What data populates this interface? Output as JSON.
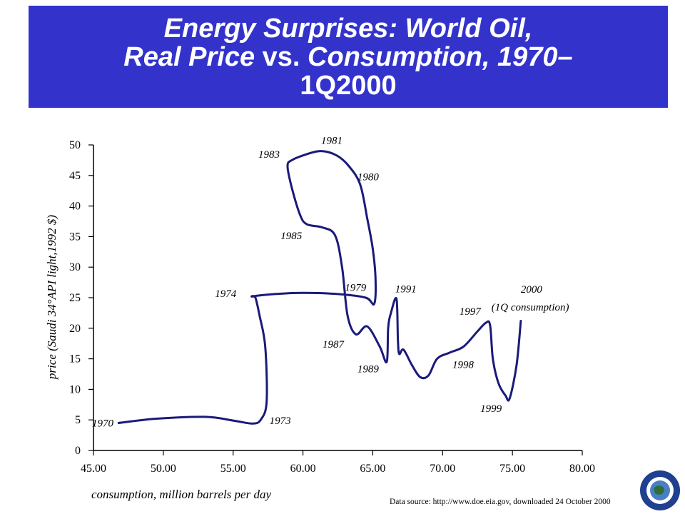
{
  "title": {
    "line1": "Energy Surprises: World Oil,",
    "line2_a": "Real Price",
    "line2_b": " vs. ",
    "line2_c": "Consumption, 1970–",
    "line3": "1Q2000"
  },
  "chart_data": {
    "type": "line",
    "xlabel": "consumption, million barrels per day",
    "ylabel": "price (Saudi 34°API light,1992 $)",
    "xlim": [
      45,
      80
    ],
    "ylim": [
      0,
      50
    ],
    "x_ticks": [
      "45.00",
      "50.00",
      "55.00",
      "60.00",
      "65.00",
      "70.00",
      "75.00",
      "80.00"
    ],
    "y_ticks": [
      "0",
      "5",
      "10",
      "15",
      "20",
      "25",
      "30",
      "35",
      "40",
      "45",
      "50"
    ],
    "series": [
      {
        "x": [
          46.8,
          49.5,
          53.0,
          55.0,
          56.4,
          57.0,
          57.4,
          57.3,
          56.9,
          56.6,
          56.4,
          58.0,
          60.0,
          62.5,
          64.5,
          65.1,
          65.2,
          65.0,
          64.6,
          64.1,
          63.3,
          62.4,
          61.3,
          60.3,
          59.2,
          58.9,
          59.2,
          59.8,
          60.3,
          61.4,
          62.3,
          62.8,
          63.2,
          63.8,
          64.6,
          65.5,
          66.0,
          66.1,
          66.3,
          66.7,
          66.8,
          66.9,
          67.2,
          67.8,
          68.4,
          69.0,
          69.6,
          70.5,
          71.5,
          72.5,
          73.1,
          73.4,
          73.6,
          74.0,
          74.5,
          74.8,
          75.3,
          75.6
        ],
        "y": [
          4.5,
          5.2,
          5.5,
          4.9,
          4.4,
          5.1,
          8.0,
          17.0,
          22.0,
          25.0,
          25.2,
          25.6,
          25.8,
          25.6,
          25.0,
          24.0,
          28.0,
          33.0,
          38.0,
          43.5,
          46.5,
          48.3,
          49.0,
          48.5,
          47.5,
          46.5,
          43.0,
          38.5,
          37.0,
          36.5,
          35.2,
          30.0,
          22.0,
          19.0,
          20.3,
          17.0,
          14.5,
          20.0,
          22.5,
          24.8,
          18.0,
          15.8,
          16.5,
          14.0,
          12.0,
          12.3,
          15.0,
          16.0,
          17.0,
          19.5,
          20.9,
          20.5,
          15.0,
          11.0,
          9.0,
          8.5,
          14.0,
          21.2
        ]
      }
    ],
    "annotations": [
      {
        "text": "1970",
        "x": 44.9,
        "y": 3.9
      },
      {
        "text": "1973",
        "x": 57.6,
        "y": 4.3
      },
      {
        "text": "1974",
        "x": 53.7,
        "y": 25.1
      },
      {
        "text": "1979",
        "x": 63.0,
        "y": 26.1
      },
      {
        "text": "1980",
        "x": 63.9,
        "y": 44.2
      },
      {
        "text": "1981",
        "x": 61.3,
        "y": 50.2
      },
      {
        "text": "1983",
        "x": 56.8,
        "y": 47.9
      },
      {
        "text": "1985",
        "x": 58.4,
        "y": 34.6
      },
      {
        "text": "1987",
        "x": 61.4,
        "y": 16.8
      },
      {
        "text": "1989",
        "x": 63.9,
        "y": 12.8
      },
      {
        "text": "1991",
        "x": 66.6,
        "y": 25.9
      },
      {
        "text": "1997",
        "x": 71.2,
        "y": 22.2
      },
      {
        "text": "1998",
        "x": 70.7,
        "y": 13.5
      },
      {
        "text": "1999",
        "x": 72.7,
        "y": 6.3
      },
      {
        "text": "2000",
        "x": 75.6,
        "y": 25.8
      },
      {
        "text": "(1Q consumption)",
        "x": 73.5,
        "y": 22.9
      }
    ],
    "grid": false
  },
  "source": "Data source:  http://www.doe.eia.gov, downloaded 24 October 2000",
  "colors": {
    "banner": "#3333cc",
    "line": "#1a1a7a"
  }
}
